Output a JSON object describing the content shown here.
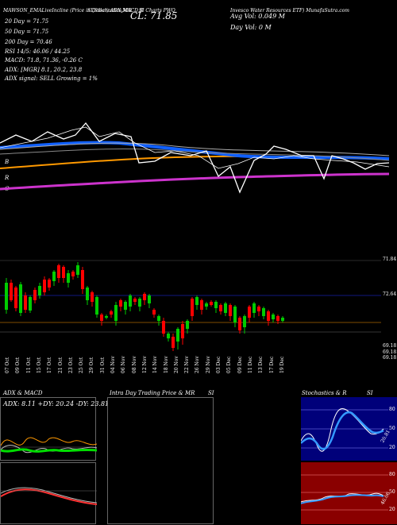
{
  "header": {
    "title_left": "MAWSON_EMALiveIncline (Price in Dollar) ADX,MACD,B",
    "title_mid": "SI,Stochastics,MR",
    "title_mid2": "SI Charts PWO",
    "title_right": "Invesco Water Resources ETF) MunafaSutra.com",
    "close_label": "CL: 71.85",
    "avg_vol": "Avg Vol: 0.049 M",
    "day_vol": "Day Vol: 0  M"
  },
  "indicators": {
    "ema20": "20 Day = 71.75",
    "ema50": "50 Day = 71.75",
    "ema200": "200 Day = 70.46",
    "rsi": "RSI 14/5: 46.06 / 44.25",
    "macd": "MACD: 71.8, 71.36, -0.26  C",
    "adx": "ADX: [MGR] 8.1, 20.2, 23.8",
    "adx_signal": "ADX  signal: SELL Growing = 1%",
    "b": "B",
    "r": "R",
    "c": "C"
  },
  "price_axis": {
    "top": "71.84",
    "mid": "72.64",
    "low1": "69.18",
    "low2": "69.18",
    "low3": "69.18"
  },
  "dates": [
    "07 Oct",
    "09 Oct",
    "11 Oct",
    "15 Oct",
    "17 Oct",
    "21 Oct",
    "23 Oct",
    "25 Oct",
    "29 Oct",
    "31 Oct",
    "04 Nov",
    "06 Nov",
    "08 Nov",
    "12 Nov",
    "14 Nov",
    "18 Nov",
    "20 Nov",
    "22 Nov",
    "26 Nov",
    "29 Nov",
    "03 Dec",
    "05 Dec",
    "09 Dec",
    "11 Dec",
    "13 Dec",
    "17 Dec",
    "19 Dec"
  ],
  "panels": {
    "adx_title": "ADX  & MACD",
    "adx_values": "ADX: 8.11  +DY: 20.24  -DY: 23.81",
    "intraday_title": "Intra  Day Trading Price  & MR",
    "intraday_si": "SI",
    "stoch_title": "Stochastics & R",
    "stoch_si": "SI",
    "stoch_levels": [
      "80",
      "50",
      "20"
    ],
    "stoch_value": "20.81",
    "rsi_levels": [
      "80",
      "50",
      "20"
    ],
    "rsi_value": "46.06"
  },
  "colors": {
    "up": "#00cc00",
    "down": "#ff0000",
    "ema_blue": "#1060ff",
    "ema_orange": "#ff9900",
    "ema_magenta": "#cc33cc",
    "stoch_bg": "#00007a",
    "rsi_bg": "#8a0000"
  }
}
